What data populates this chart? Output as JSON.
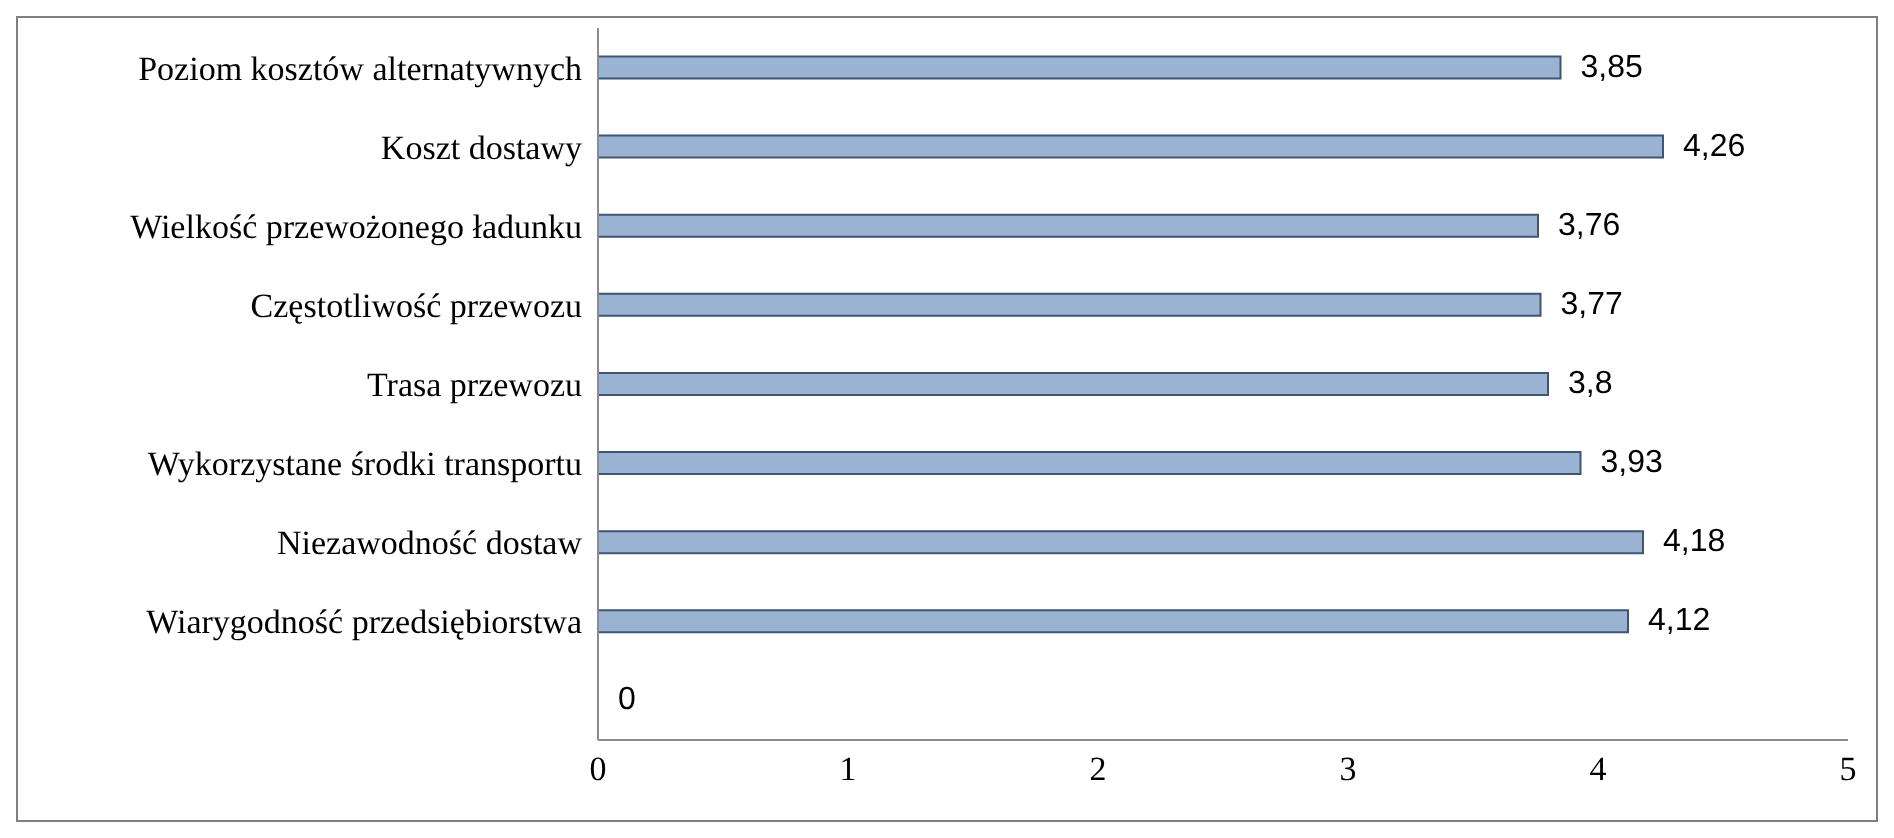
{
  "chart_data": {
    "type": "bar",
    "orientation": "horizontal",
    "categories": [
      "Poziom kosztów alternatywnych",
      "Koszt dostawy",
      "Wielkość przewożonego ładunku",
      "Częstotliwość przewozu",
      "Trasa przewozu",
      "Wykorzystane środki transportu",
      "Niezawodność dostaw",
      "Wiarygodność przedsiębiorstwa",
      null
    ],
    "values": [
      3.85,
      4.26,
      3.76,
      3.77,
      3.8,
      3.93,
      4.18,
      4.12,
      0
    ],
    "value_labels": [
      "3,85",
      "4,26",
      "3,76",
      "3,77",
      "3,8",
      "3,93",
      "4,18",
      "4,12",
      "0"
    ],
    "color": "#9bb3d3",
    "xlim": [
      0,
      5
    ],
    "xticks": [
      0,
      1,
      2,
      3,
      4,
      5
    ]
  }
}
